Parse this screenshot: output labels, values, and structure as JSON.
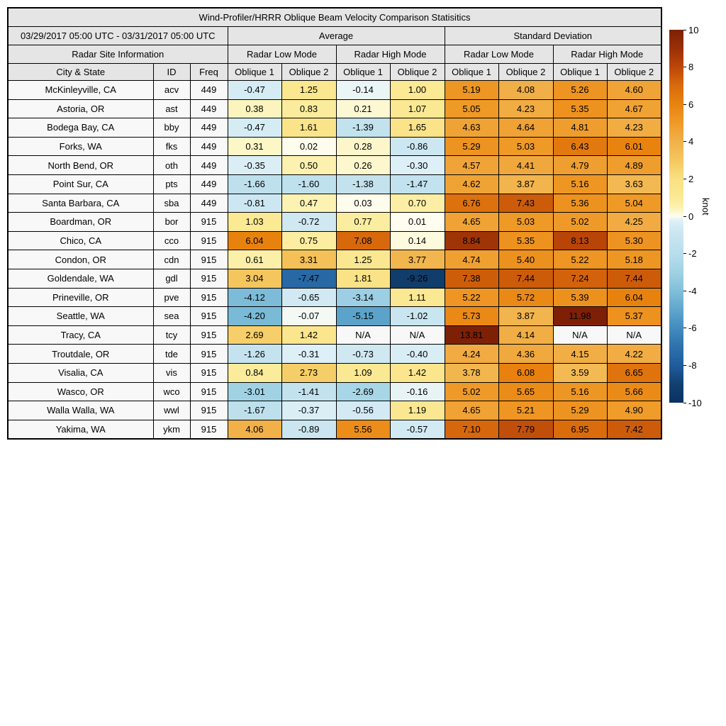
{
  "figure": {
    "title": "Wind-Profiler/HRRR Oblique Beam Velocity Comparison Statisitics",
    "date_range": "03/29/2017 05:00 UTC - 03/31/2017 05:00 UTC",
    "site_info_header": "Radar Site Information",
    "group_headers": [
      "Average",
      "Standard Deviation"
    ],
    "mode_headers": [
      "Radar Low Mode",
      "Radar High Mode",
      "Radar Low Mode",
      "Radar High Mode"
    ],
    "column_headers": [
      "City & State",
      "ID",
      "Freq",
      "Oblique 1",
      "Oblique 2",
      "Oblique 1",
      "Oblique 2",
      "Oblique 1",
      "Oblique 2",
      "Oblique 1",
      "Oblique 2"
    ]
  },
  "chart_data": {
    "type": "heatmap",
    "title": "Wind-Profiler/HRRR Oblique Beam Velocity Comparison Statisitics",
    "date_range": "03/29/2017 05:00 UTC - 03/31/2017 05:00 UTC",
    "value_unit": "knot",
    "column_groups": [
      "Average / Radar Low Mode / Oblique 1",
      "Average / Radar Low Mode / Oblique 2",
      "Average / Radar High Mode / Oblique 1",
      "Average / Radar High Mode / Oblique 2",
      "Standard Deviation / Radar Low Mode / Oblique 1",
      "Standard Deviation / Radar Low Mode / Oblique 2",
      "Standard Deviation / Radar High Mode / Oblique 1",
      "Standard Deviation / Radar High Mode / Oblique 2"
    ],
    "rows": [
      {
        "city": "McKinleyville, CA",
        "id": "acv",
        "freq": "449",
        "values": [
          -0.47,
          1.25,
          -0.14,
          1.0,
          5.19,
          4.08,
          5.26,
          4.6
        ]
      },
      {
        "city": "Astoria, OR",
        "id": "ast",
        "freq": "449",
        "values": [
          0.38,
          0.83,
          0.21,
          1.07,
          5.05,
          4.23,
          5.35,
          4.67
        ]
      },
      {
        "city": "Bodega Bay, CA",
        "id": "bby",
        "freq": "449",
        "values": [
          -0.47,
          1.61,
          -1.39,
          1.65,
          4.63,
          4.64,
          4.81,
          4.23
        ]
      },
      {
        "city": "Forks, WA",
        "id": "fks",
        "freq": "449",
        "values": [
          0.31,
          0.02,
          0.28,
          -0.86,
          5.29,
          5.03,
          6.43,
          6.01
        ]
      },
      {
        "city": "North Bend, OR",
        "id": "oth",
        "freq": "449",
        "values": [
          -0.35,
          0.5,
          0.26,
          -0.3,
          4.57,
          4.41,
          4.79,
          4.89
        ]
      },
      {
        "city": "Point Sur, CA",
        "id": "pts",
        "freq": "449",
        "values": [
          -1.66,
          -1.6,
          -1.38,
          -1.47,
          4.62,
          3.87,
          5.16,
          3.63
        ]
      },
      {
        "city": "Santa Barbara, CA",
        "id": "sba",
        "freq": "449",
        "values": [
          -0.81,
          0.47,
          0.03,
          0.7,
          6.76,
          7.43,
          5.36,
          5.04
        ]
      },
      {
        "city": "Boardman, OR",
        "id": "bor",
        "freq": "915",
        "values": [
          1.03,
          -0.72,
          0.77,
          0.01,
          4.65,
          5.03,
          5.02,
          4.25
        ]
      },
      {
        "city": "Chico, CA",
        "id": "cco",
        "freq": "915",
        "values": [
          6.04,
          0.75,
          7.08,
          0.14,
          8.84,
          5.35,
          8.13,
          5.3
        ]
      },
      {
        "city": "Condon, OR",
        "id": "cdn",
        "freq": "915",
        "values": [
          0.61,
          3.31,
          1.25,
          3.77,
          4.74,
          5.4,
          5.22,
          5.18
        ]
      },
      {
        "city": "Goldendale, WA",
        "id": "gdl",
        "freq": "915",
        "values": [
          3.04,
          -7.47,
          1.81,
          -9.26,
          7.38,
          7.44,
          7.24,
          7.44
        ]
      },
      {
        "city": "Prineville, OR",
        "id": "pve",
        "freq": "915",
        "values": [
          -4.12,
          -0.65,
          -3.14,
          1.11,
          5.22,
          5.72,
          5.39,
          6.04
        ]
      },
      {
        "city": "Seattle, WA",
        "id": "sea",
        "freq": "915",
        "values": [
          -4.2,
          -0.07,
          -5.15,
          -1.02,
          5.73,
          3.87,
          11.98,
          5.37
        ]
      },
      {
        "city": "Tracy, CA",
        "id": "tcy",
        "freq": "915",
        "values": [
          2.69,
          1.42,
          "N/A",
          "N/A",
          13.81,
          4.14,
          "N/A",
          "N/A"
        ]
      },
      {
        "city": "Troutdale, OR",
        "id": "tde",
        "freq": "915",
        "values": [
          -1.26,
          -0.31,
          -0.73,
          -0.4,
          4.24,
          4.36,
          4.15,
          4.22
        ]
      },
      {
        "city": "Visalia, CA",
        "id": "vis",
        "freq": "915",
        "values": [
          0.84,
          2.73,
          1.09,
          1.42,
          3.78,
          6.08,
          3.59,
          6.65
        ]
      },
      {
        "city": "Wasco, OR",
        "id": "wco",
        "freq": "915",
        "values": [
          -3.01,
          -1.41,
          -2.69,
          -0.16,
          5.02,
          5.65,
          5.16,
          5.66
        ]
      },
      {
        "city": "Walla Walla, WA",
        "id": "wwl",
        "freq": "915",
        "values": [
          -1.67,
          -0.37,
          -0.56,
          1.19,
          4.65,
          5.21,
          5.29,
          4.9
        ]
      },
      {
        "city": "Yakima, WA",
        "id": "ykm",
        "freq": "915",
        "values": [
          4.06,
          -0.89,
          5.56,
          -0.57,
          7.1,
          7.79,
          6.95,
          7.42
        ]
      }
    ],
    "colorbar": {
      "label": "knot",
      "min": -10,
      "max": 10,
      "ticks": [
        10,
        8,
        6,
        4,
        2,
        0,
        -2,
        -4,
        -6,
        -8,
        -10
      ],
      "anchors": [
        {
          "v": -10,
          "c": "#0A3161"
        },
        {
          "v": -9,
          "c": "#12416F"
        },
        {
          "v": -8,
          "c": "#1F5C9D"
        },
        {
          "v": -7,
          "c": "#2E72AC"
        },
        {
          "v": -6,
          "c": "#428CBE"
        },
        {
          "v": -5,
          "c": "#5FA7CC"
        },
        {
          "v": -4,
          "c": "#80BFDA"
        },
        {
          "v": -3,
          "c": "#A0D2E4"
        },
        {
          "v": -2,
          "c": "#B8DEEC"
        },
        {
          "v": -1,
          "c": "#C9E5F0"
        },
        {
          "v": -0.5,
          "c": "#D4EBF4"
        },
        {
          "v": -0.2,
          "c": "#E2F1F8"
        },
        {
          "v": 0,
          "c": "#FEFDF0"
        },
        {
          "v": 0.5,
          "c": "#FCF1AE"
        },
        {
          "v": 1,
          "c": "#FBE994"
        },
        {
          "v": 2,
          "c": "#FAE083"
        },
        {
          "v": 3,
          "c": "#F5C75F"
        },
        {
          "v": 4,
          "c": "#F1B14A"
        },
        {
          "v": 5,
          "c": "#EF9A28"
        },
        {
          "v": 6,
          "c": "#E9830F"
        },
        {
          "v": 7,
          "c": "#D96B0C"
        },
        {
          "v": 8,
          "c": "#BC4708"
        },
        {
          "v": 9,
          "c": "#9A3007"
        },
        {
          "v": 10,
          "c": "#7E2006"
        }
      ],
      "na_background": "#F8F8F8"
    }
  }
}
